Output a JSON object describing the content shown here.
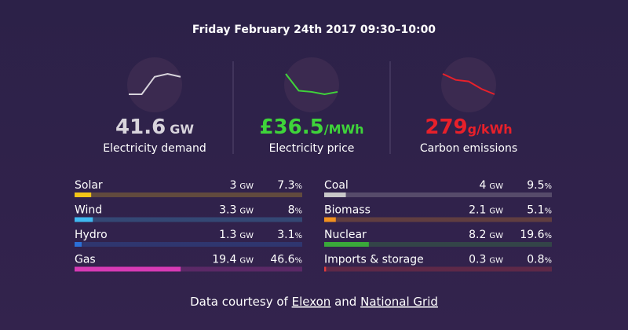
{
  "header": {
    "title": "Friday February 24th 2017 09:30–10:00"
  },
  "summary": [
    {
      "value": 41.6,
      "unit": "GW",
      "label": "Electricity demand",
      "color": "#d8d4dc",
      "value_color": "#d8d4dc",
      "trend": [
        34,
        34,
        40,
        41,
        40
      ]
    },
    {
      "value": "£36.5",
      "unit": "/MWh",
      "label": "Electricity price",
      "color": "#3fd43a",
      "value_color": "#3fd43a",
      "trend": [
        52,
        38,
        37,
        35,
        37
      ]
    },
    {
      "value": 279,
      "unit": "g/kWh",
      "label": "Carbon emissions",
      "color": "#e8202a",
      "value_color": "#e8202a",
      "trend": [
        310,
        302,
        300,
        290,
        283
      ]
    }
  ],
  "units": {
    "power": "GW",
    "share": "%"
  },
  "sources": [
    {
      "name": "Solar",
      "gw": 3,
      "percent": 7.3,
      "color": "#f2c418"
    },
    {
      "name": "Wind",
      "gw": 3.3,
      "percent": 8,
      "color": "#3fb8f0"
    },
    {
      "name": "Hydro",
      "gw": 1.3,
      "percent": 3.1,
      "color": "#2b6fd6"
    },
    {
      "name": "Gas",
      "gw": 19.4,
      "percent": 46.6,
      "color": "#d63ab4"
    },
    {
      "name": "Coal",
      "gw": 4,
      "percent": 9.5,
      "color": "#c8c8c8"
    },
    {
      "name": "Biomass",
      "gw": 2.1,
      "percent": 5.1,
      "color": "#f0901e"
    },
    {
      "name": "Nuclear",
      "gw": 8.2,
      "percent": 19.6,
      "color": "#3aa83a"
    },
    {
      "name": "Imports & storage",
      "gw": 0.3,
      "percent": 0.8,
      "color": "#e23a3a"
    }
  ],
  "footer": {
    "text1": "Data courtesy of",
    "link1": "Elexon",
    "text2": "and",
    "link2": "National Grid"
  }
}
